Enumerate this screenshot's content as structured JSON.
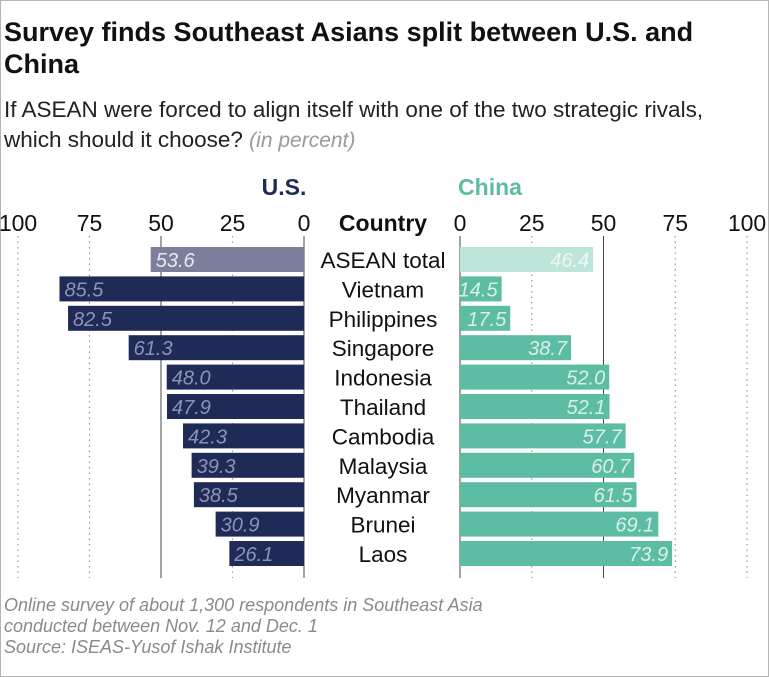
{
  "title": "Survey finds Southeast Asians split between U.S. and China",
  "subtitle": "If ASEAN were forced to align itself with one of the two strategic rivals, which should it choose?",
  "subtitle_unit": "(in percent)",
  "footer": {
    "line1": "Online survey of about 1,300 respondents in Southeast Asia",
    "line2": "conducted between Nov. 12 and Dec. 1",
    "source": "Source: ISEAS-Yusof Ishak Institute"
  },
  "colors": {
    "us": "#1f2a57",
    "us_total": "#7b7f9c",
    "china": "#5cbda3",
    "china_total": "#bde5d9"
  },
  "chart_data": {
    "type": "bar",
    "orientation": "horizontal-diverging",
    "category_header": "Country",
    "categories": [
      "ASEAN total",
      "Vietnam",
      "Philippines",
      "Singapore",
      "Indonesia",
      "Thailand",
      "Cambodia",
      "Malaysia",
      "Myanmar",
      "Brunei",
      "Laos"
    ],
    "series": [
      {
        "name": "U.S.",
        "values": [
          53.6,
          85.5,
          82.5,
          61.3,
          48.0,
          47.9,
          42.3,
          39.3,
          38.5,
          30.9,
          26.1
        ]
      },
      {
        "name": "China",
        "values": [
          46.4,
          14.5,
          17.5,
          38.7,
          52.0,
          52.1,
          57.7,
          60.7,
          61.5,
          69.1,
          73.9
        ]
      }
    ],
    "ticks": [
      0,
      25,
      50,
      75,
      100
    ],
    "xlim": [
      0,
      100
    ],
    "grid": true
  }
}
